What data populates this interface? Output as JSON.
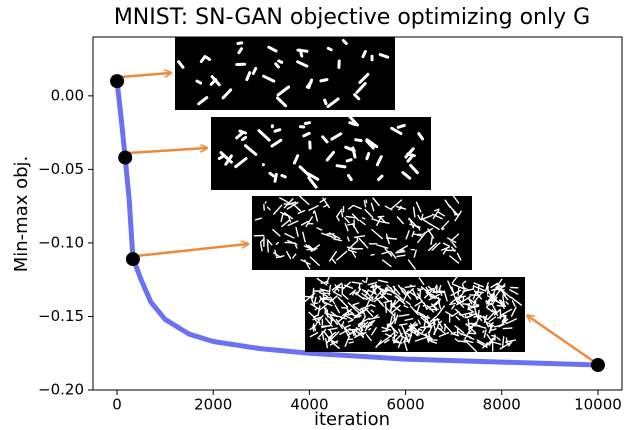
{
  "chart_data": {
    "type": "line",
    "title": "MNIST: SN-GAN objective optimizing only G",
    "x_label": "iteration",
    "y_label": "Min-max obj.",
    "xlim": [
      -500,
      10500
    ],
    "ylim": [
      -0.2,
      0.04
    ],
    "xticks": [
      0,
      2000,
      4000,
      6000,
      8000,
      10000
    ],
    "yticks": [
      {
        "value": 0.0,
        "label": "0.00"
      },
      {
        "value": -0.05,
        "label": "−0.05"
      },
      {
        "value": -0.1,
        "label": "−0.10"
      },
      {
        "value": -0.15,
        "label": "−0.15"
      },
      {
        "value": -0.2,
        "label": "−0.20"
      }
    ],
    "grid": false,
    "series": [
      {
        "color": "#5b63f0",
        "x": [
          0,
          50,
          100,
          170,
          250,
          330,
          500,
          700,
          1000,
          1500,
          2000,
          3000,
          4000,
          6000,
          8000,
          10000
        ],
        "values": [
          0.01,
          -0.005,
          -0.02,
          -0.042,
          -0.07,
          -0.11,
          -0.125,
          -0.14,
          -0.152,
          -0.162,
          -0.167,
          -0.172,
          -0.175,
          -0.179,
          -0.181,
          -0.183
        ]
      },
      {
        "color": "#000000",
        "markers": true,
        "x": [
          0,
          170,
          330,
          10000
        ],
        "values": [
          0.01,
          -0.042,
          -0.111,
          -0.183
        ]
      }
    ]
  }
}
